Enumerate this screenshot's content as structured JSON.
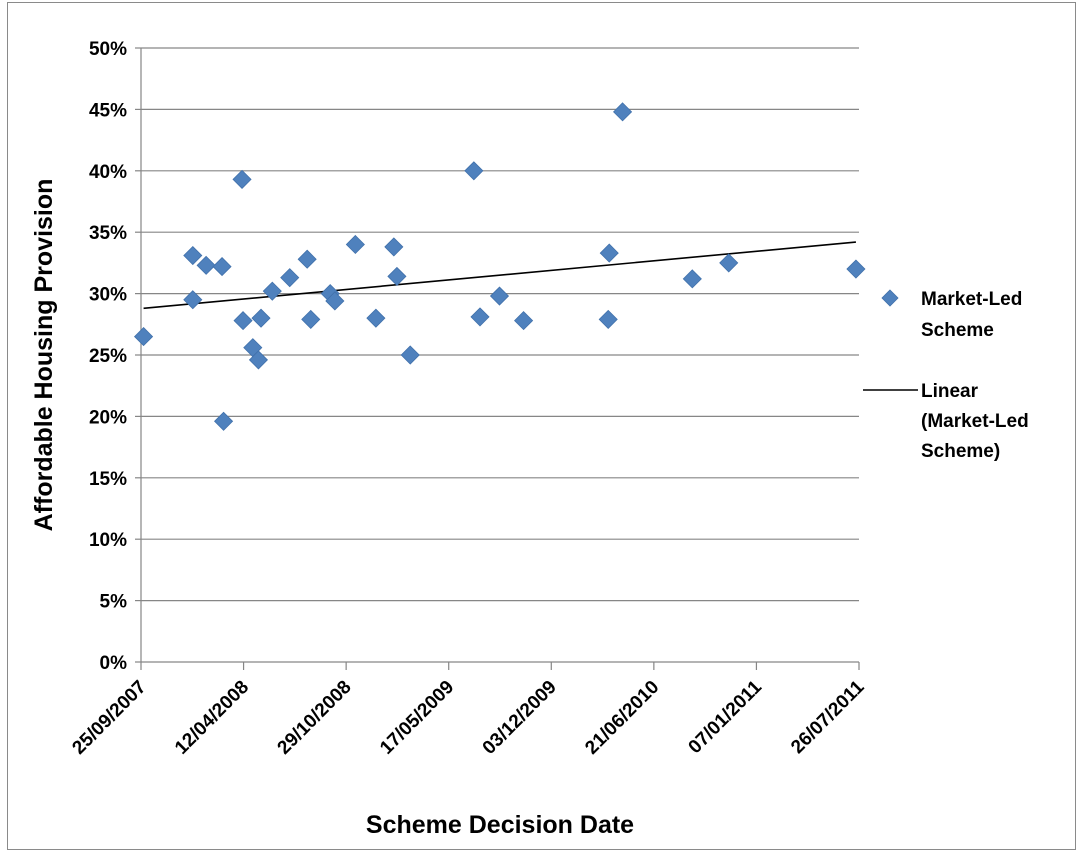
{
  "chart_data": {
    "type": "scatter",
    "title": "",
    "xlabel": "Scheme Decision Date",
    "ylabel": "Affordable Housing Provision",
    "x_tick_labels": [
      "25/09/2007",
      "12/04/2008",
      "29/10/2008",
      "17/05/2009",
      "03/12/2009",
      "21/06/2010",
      "07/01/2011",
      "26/07/2011"
    ],
    "y_tick_labels": [
      "0%",
      "5%",
      "10%",
      "15%",
      "20%",
      "25%",
      "30%",
      "35%",
      "40%",
      "45%",
      "50%"
    ],
    "xlim": [
      "2007-09-25",
      "2011-07-26"
    ],
    "ylim": [
      0,
      50
    ],
    "grid": "horizontal",
    "legend_position": "right",
    "series": [
      {
        "name": "Market-Led Scheme",
        "marker": "diamond",
        "color": "#4f81bd",
        "x": [
          "2007-09-30",
          "2008-01-04",
          "2008-01-04",
          "2008-01-30",
          "2008-03-01",
          "2008-03-04",
          "2008-04-09",
          "2008-04-11",
          "2008-04-30",
          "2008-05-11",
          "2008-05-16",
          "2008-06-07",
          "2008-07-11",
          "2008-08-14",
          "2008-08-21",
          "2008-09-28",
          "2008-10-07",
          "2008-11-16",
          "2008-12-26",
          "2009-01-30",
          "2009-02-05",
          "2009-03-03",
          "2009-07-05",
          "2009-07-17",
          "2009-08-24",
          "2009-10-10",
          "2010-03-24",
          "2010-03-26",
          "2010-04-21",
          "2010-09-04",
          "2010-11-14",
          "2011-07-20"
        ],
        "y": [
          26.5,
          33.1,
          29.5,
          32.3,
          32.2,
          19.6,
          39.3,
          27.8,
          25.6,
          24.6,
          28.0,
          30.2,
          31.3,
          32.8,
          27.9,
          30.0,
          29.4,
          34.0,
          28.0,
          33.8,
          31.4,
          25.0,
          40.0,
          28.1,
          29.8,
          27.8,
          27.9,
          33.3,
          44.8,
          31.2,
          32.5,
          32.0
        ]
      },
      {
        "name": "Linear (Market-Led Scheme)",
        "type": "line",
        "color": "#000000",
        "x": [
          "2007-09-30",
          "2011-07-20"
        ],
        "y": [
          28.8,
          34.2
        ]
      }
    ]
  },
  "legend": {
    "items": [
      {
        "lines": [
          "Market-Led",
          "Scheme"
        ]
      },
      {
        "lines": [
          "Linear",
          "(Market-Led",
          "Scheme)"
        ]
      }
    ]
  }
}
